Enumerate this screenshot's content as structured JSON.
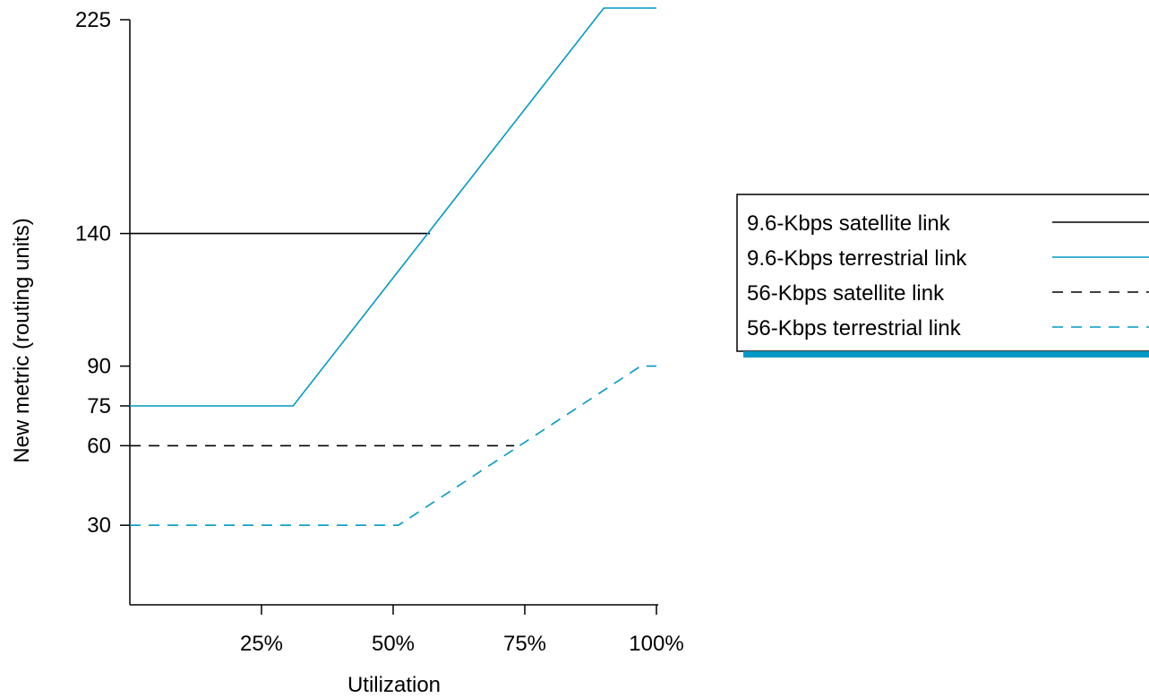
{
  "chart_data": {
    "type": "line",
    "xlabel": "Utilization",
    "ylabel": "New metric (routing units)",
    "xlim": [
      0,
      100
    ],
    "ylim": [
      0,
      225
    ],
    "x_ticks": [
      {
        "value": 25,
        "label": "25%"
      },
      {
        "value": 50,
        "label": "50%"
      },
      {
        "value": 75,
        "label": "75%"
      },
      {
        "value": 100,
        "label": "100%"
      }
    ],
    "y_ticks": [
      {
        "value": 30,
        "label": "30"
      },
      {
        "value": 60,
        "label": "60"
      },
      {
        "value": 75,
        "label": "75"
      },
      {
        "value": 90,
        "label": "90"
      },
      {
        "value": 140,
        "label": "140"
      },
      {
        "value": 225,
        "label": "225"
      }
    ],
    "grid": false,
    "legend_position": "right",
    "legend_underline_color": "#0099c6",
    "series": [
      {
        "name": "9.6-Kbps satellite link",
        "color": "#000000",
        "dashed": false,
        "points": [
          [
            0,
            140
          ],
          [
            57,
            140
          ]
        ]
      },
      {
        "name": "9.6-Kbps terrestrial link",
        "color": "#0099c6",
        "dashed": false,
        "points": [
          [
            0,
            75
          ],
          [
            31,
            75
          ],
          [
            90,
            225
          ],
          [
            100,
            225
          ]
        ]
      },
      {
        "name": "56-Kbps satellite link",
        "color": "#000000",
        "dashed": true,
        "points": [
          [
            0,
            60
          ],
          [
            73,
            60
          ]
        ]
      },
      {
        "name": "56-Kbps terrestrial link",
        "color": "#0099c6",
        "dashed": true,
        "points": [
          [
            0,
            30
          ],
          [
            51,
            30
          ],
          [
            97,
            90
          ],
          [
            100,
            90
          ]
        ]
      }
    ]
  }
}
